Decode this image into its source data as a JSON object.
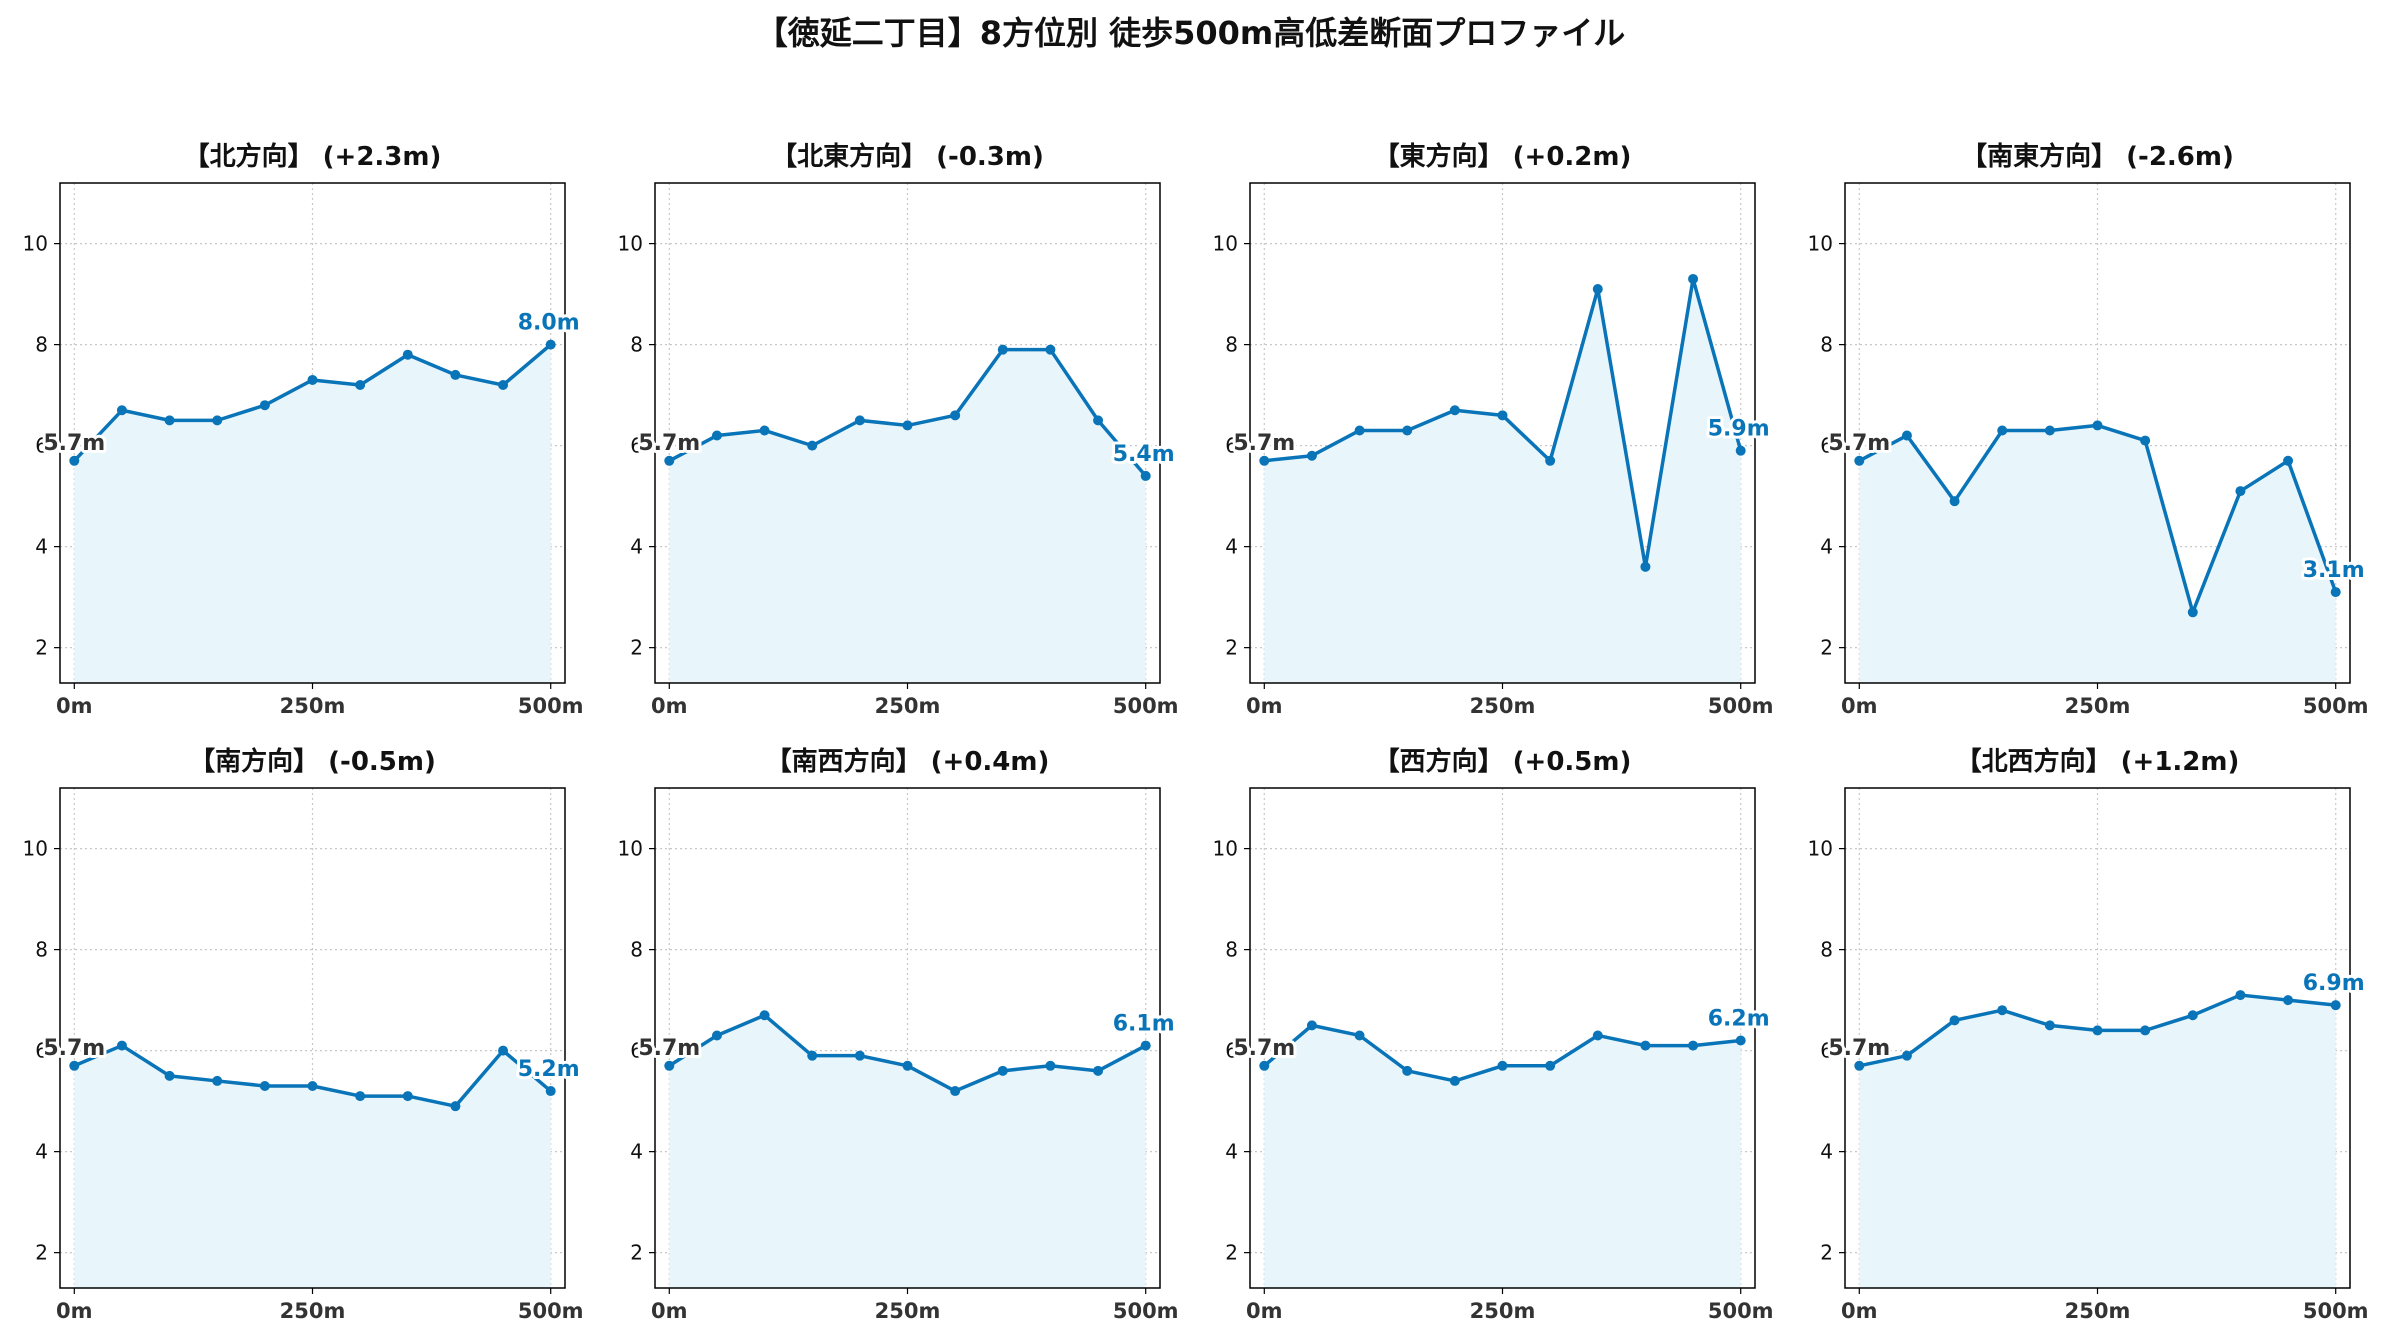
{
  "title": "【徳延二丁目】8方位別 徒歩500m高低差断面プロファイル",
  "style": {
    "line_color": "#0a74b8",
    "fill_color": "#e8f6fc",
    "grid_color": "#c8c8c8",
    "start_label_color": "#333333"
  },
  "chart_data": [
    {
      "type": "line",
      "title": "【北方向】 (+2.3m)",
      "x": [
        0,
        50,
        100,
        150,
        200,
        250,
        300,
        350,
        400,
        450,
        500
      ],
      "values": [
        5.7,
        6.7,
        6.5,
        6.5,
        6.8,
        7.3,
        7.2,
        7.8,
        7.4,
        7.2,
        8.0
      ],
      "start_label": "5.7m",
      "end_label": "8.0m",
      "xticks": [
        "0m",
        "250m",
        "500m"
      ],
      "yticks": [
        2,
        4,
        6,
        8,
        10
      ],
      "ylim": [
        1.3,
        11.2
      ],
      "xlim": [
        -15,
        515
      ],
      "grid": true
    },
    {
      "type": "line",
      "title": "【北東方向】 (-0.3m)",
      "x": [
        0,
        50,
        100,
        150,
        200,
        250,
        300,
        350,
        400,
        450,
        500
      ],
      "values": [
        5.7,
        6.2,
        6.3,
        6.0,
        6.5,
        6.4,
        6.6,
        7.9,
        7.9,
        6.5,
        5.4
      ],
      "start_label": "5.7m",
      "end_label": "5.4m",
      "xticks": [
        "0m",
        "250m",
        "500m"
      ],
      "yticks": [
        2,
        4,
        6,
        8,
        10
      ],
      "ylim": [
        1.3,
        11.2
      ],
      "xlim": [
        -15,
        515
      ],
      "grid": true
    },
    {
      "type": "line",
      "title": "【東方向】 (+0.2m)",
      "x": [
        0,
        50,
        100,
        150,
        200,
        250,
        300,
        350,
        400,
        450,
        500
      ],
      "values": [
        5.7,
        5.8,
        6.3,
        6.3,
        6.7,
        6.6,
        5.7,
        9.1,
        3.6,
        9.3,
        5.9
      ],
      "start_label": "5.7m",
      "end_label": "5.9m",
      "xticks": [
        "0m",
        "250m",
        "500m"
      ],
      "yticks": [
        2,
        4,
        6,
        8,
        10
      ],
      "ylim": [
        1.3,
        11.2
      ],
      "xlim": [
        -15,
        515
      ],
      "grid": true
    },
    {
      "type": "line",
      "title": "【南東方向】 (-2.6m)",
      "x": [
        0,
        50,
        100,
        150,
        200,
        250,
        300,
        350,
        400,
        450,
        500
      ],
      "values": [
        5.7,
        6.2,
        4.9,
        6.3,
        6.3,
        6.4,
        6.1,
        2.7,
        5.1,
        5.7,
        3.1
      ],
      "start_label": "5.7m",
      "end_label": "3.1m",
      "xticks": [
        "0m",
        "250m",
        "500m"
      ],
      "yticks": [
        2,
        4,
        6,
        8,
        10
      ],
      "ylim": [
        1.3,
        11.2
      ],
      "xlim": [
        -15,
        515
      ],
      "grid": true
    },
    {
      "type": "line",
      "title": "【南方向】 (-0.5m)",
      "x": [
        0,
        50,
        100,
        150,
        200,
        250,
        300,
        350,
        400,
        450,
        500
      ],
      "values": [
        5.7,
        6.1,
        5.5,
        5.4,
        5.3,
        5.3,
        5.1,
        5.1,
        4.9,
        6.0,
        5.2
      ],
      "start_label": "5.7m",
      "end_label": "5.2m",
      "xticks": [
        "0m",
        "250m",
        "500m"
      ],
      "yticks": [
        2,
        4,
        6,
        8,
        10
      ],
      "ylim": [
        1.3,
        11.2
      ],
      "xlim": [
        -15,
        515
      ],
      "grid": true
    },
    {
      "type": "line",
      "title": "【南西方向】 (+0.4m)",
      "x": [
        0,
        50,
        100,
        150,
        200,
        250,
        300,
        350,
        400,
        450,
        500
      ],
      "values": [
        5.7,
        6.3,
        6.7,
        5.9,
        5.9,
        5.7,
        5.2,
        5.6,
        5.7,
        5.6,
        6.1
      ],
      "start_label": "5.7m",
      "end_label": "6.1m",
      "xticks": [
        "0m",
        "250m",
        "500m"
      ],
      "yticks": [
        2,
        4,
        6,
        8,
        10
      ],
      "ylim": [
        1.3,
        11.2
      ],
      "xlim": [
        -15,
        515
      ],
      "grid": true
    },
    {
      "type": "line",
      "title": "【西方向】 (+0.5m)",
      "x": [
        0,
        50,
        100,
        150,
        200,
        250,
        300,
        350,
        400,
        450,
        500
      ],
      "values": [
        5.7,
        6.5,
        6.3,
        5.6,
        5.4,
        5.7,
        5.7,
        6.3,
        6.1,
        6.1,
        6.2
      ],
      "start_label": "5.7m",
      "end_label": "6.2m",
      "xticks": [
        "0m",
        "250m",
        "500m"
      ],
      "yticks": [
        2,
        4,
        6,
        8,
        10
      ],
      "ylim": [
        1.3,
        11.2
      ],
      "xlim": [
        -15,
        515
      ],
      "grid": true
    },
    {
      "type": "line",
      "title": "【北西方向】 (+1.2m)",
      "x": [
        0,
        50,
        100,
        150,
        200,
        250,
        300,
        350,
        400,
        450,
        500
      ],
      "values": [
        5.7,
        5.9,
        6.6,
        6.8,
        6.5,
        6.4,
        6.4,
        6.7,
        7.1,
        7.0,
        6.9
      ],
      "start_label": "5.7m",
      "end_label": "6.9m",
      "xticks": [
        "0m",
        "250m",
        "500m"
      ],
      "yticks": [
        2,
        4,
        6,
        8,
        10
      ],
      "ylim": [
        1.3,
        11.2
      ],
      "xlim": [
        -15,
        515
      ],
      "grid": true
    }
  ]
}
